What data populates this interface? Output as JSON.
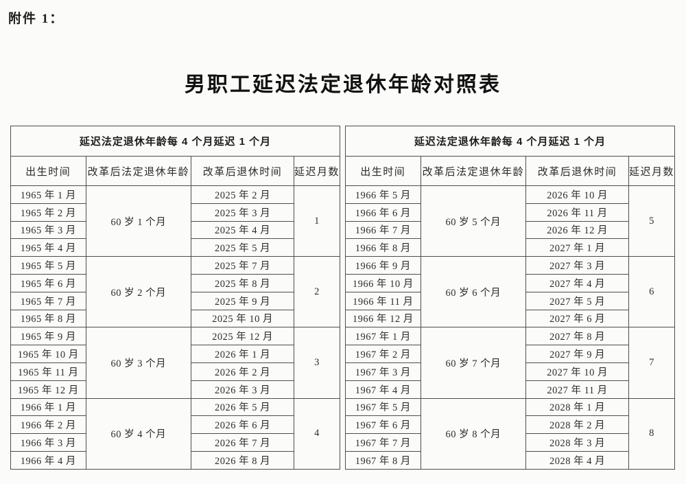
{
  "page": {
    "attachment_label": "附件 1：",
    "title": "男职工延迟法定退休年龄对照表"
  },
  "tables": [
    {
      "span_header": "延迟法定退休年龄每 4 个月延迟 1 个月",
      "columns": [
        "出生时间",
        "改革后法定退休年龄",
        "改革后退休时间",
        "延迟月数"
      ],
      "groups": [
        {
          "age": "60 岁 1 个月",
          "delay": "1",
          "rows": [
            [
              "1965 年 1 月",
              "2025 年 2 月"
            ],
            [
              "1965 年 2 月",
              "2025 年 3 月"
            ],
            [
              "1965 年 3 月",
              "2025 年 4 月"
            ],
            [
              "1965 年 4 月",
              "2025 年 5 月"
            ]
          ]
        },
        {
          "age": "60 岁 2 个月",
          "delay": "2",
          "rows": [
            [
              "1965 年 5 月",
              "2025 年 7 月"
            ],
            [
              "1965 年 6 月",
              "2025 年 8 月"
            ],
            [
              "1965 年 7 月",
              "2025 年 9 月"
            ],
            [
              "1965 年 8 月",
              "2025 年 10 月"
            ]
          ]
        },
        {
          "age": "60 岁 3 个月",
          "delay": "3",
          "rows": [
            [
              "1965 年 9 月",
              "2025 年 12 月"
            ],
            [
              "1965 年 10 月",
              "2026 年 1 月"
            ],
            [
              "1965 年 11 月",
              "2026 年 2 月"
            ],
            [
              "1965 年 12 月",
              "2026 年 3 月"
            ]
          ]
        },
        {
          "age": "60 岁 4 个月",
          "delay": "4",
          "rows": [
            [
              "1966 年 1 月",
              "2026 年 5 月"
            ],
            [
              "1966 年 2 月",
              "2026 年 6 月"
            ],
            [
              "1966 年 3 月",
              "2026 年 7 月"
            ],
            [
              "1966 年 4 月",
              "2026 年 8 月"
            ]
          ]
        }
      ]
    },
    {
      "span_header": "延迟法定退休年龄每 4 个月延迟 1 个月",
      "columns": [
        "出生时间",
        "改革后法定退休年龄",
        "改革后退休时间",
        "延迟月数"
      ],
      "groups": [
        {
          "age": "60 岁 5 个月",
          "delay": "5",
          "rows": [
            [
              "1966 年 5 月",
              "2026 年 10 月"
            ],
            [
              "1966 年 6 月",
              "2026 年 11 月"
            ],
            [
              "1966 年 7 月",
              "2026 年 12 月"
            ],
            [
              "1966 年 8 月",
              "2027 年 1 月"
            ]
          ]
        },
        {
          "age": "60 岁 6 个月",
          "delay": "6",
          "rows": [
            [
              "1966 年 9 月",
              "2027 年 3 月"
            ],
            [
              "1966 年 10 月",
              "2027 年 4 月"
            ],
            [
              "1966 年 11 月",
              "2027 年 5 月"
            ],
            [
              "1966 年 12 月",
              "2027 年 6 月"
            ]
          ]
        },
        {
          "age": "60 岁 7 个月",
          "delay": "7",
          "rows": [
            [
              "1967 年 1 月",
              "2027 年 8 月"
            ],
            [
              "1967 年 2 月",
              "2027 年 9 月"
            ],
            [
              "1967 年 3 月",
              "2027 年 10 月"
            ],
            [
              "1967 年 4 月",
              "2027 年 11 月"
            ]
          ]
        },
        {
          "age": "60 岁 8 个月",
          "delay": "8",
          "rows": [
            [
              "1967 年 5 月",
              "2028 年 1 月"
            ],
            [
              "1967 年 6 月",
              "2028 年 2 月"
            ],
            [
              "1967 年 7 月",
              "2028 年 3 月"
            ],
            [
              "1967 年 8 月",
              "2028 年 4 月"
            ]
          ]
        }
      ]
    }
  ]
}
